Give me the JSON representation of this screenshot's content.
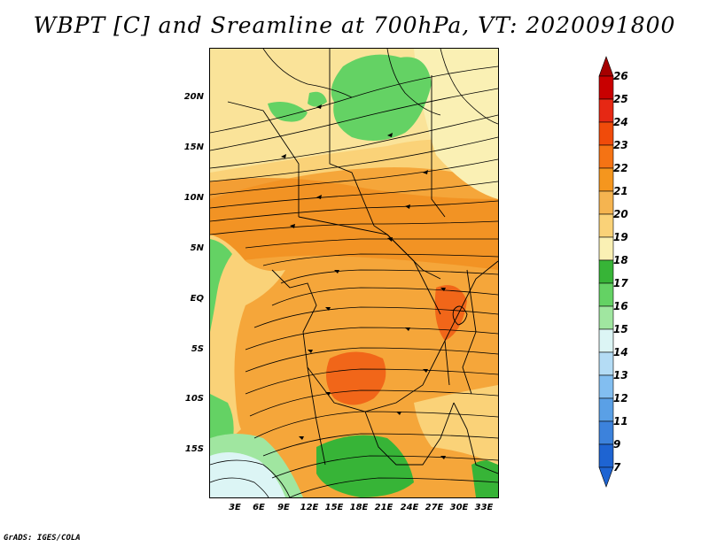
{
  "title": "WBPT [C] and Sreamline at 700hPa, VT: 2020091800",
  "map": {
    "lat_labels": [
      "20N",
      "15N",
      "10N",
      "5N",
      "EQ",
      "5S",
      "10S",
      "15S"
    ],
    "lon_labels": [
      "3E",
      "6E",
      "9E",
      "12E",
      "15E",
      "18E",
      "21E",
      "24E",
      "27E",
      "30E",
      "33E"
    ]
  },
  "colorbar": {
    "levels": [
      "26",
      "25",
      "24",
      "23",
      "22",
      "21",
      "20",
      "19",
      "18",
      "17",
      "16",
      "15",
      "14",
      "13",
      "12",
      "11",
      "9",
      "7"
    ],
    "colors": [
      "#a50000",
      "#c80000",
      "#e62814",
      "#f04b0a",
      "#f57314",
      "#f5961e",
      "#f5b450",
      "#fad278",
      "#faf0b4",
      "#37b437",
      "#64d264",
      "#a0e6a0",
      "#dcf5f5",
      "#b4dcf5",
      "#82bef0",
      "#5aa0e6",
      "#3c82dc",
      "#1e64d2",
      "#1e64d2"
    ]
  },
  "credit": "GrADS: IGES/COLA"
}
